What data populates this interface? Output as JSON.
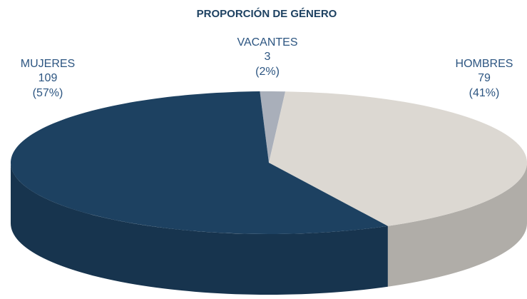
{
  "chart_data": {
    "type": "pie",
    "title": "PROPORCIÓN DE GÉNERO",
    "categories": [
      "VACANTES",
      "HOMBRES",
      "MUJERES"
    ],
    "values": [
      3,
      79,
      109
    ],
    "percent_labels": [
      "(2%)",
      "(41%)",
      "(57%)"
    ],
    "colors": [
      "#a9afba",
      "#dcd8d2",
      "#1d4161"
    ]
  }
}
